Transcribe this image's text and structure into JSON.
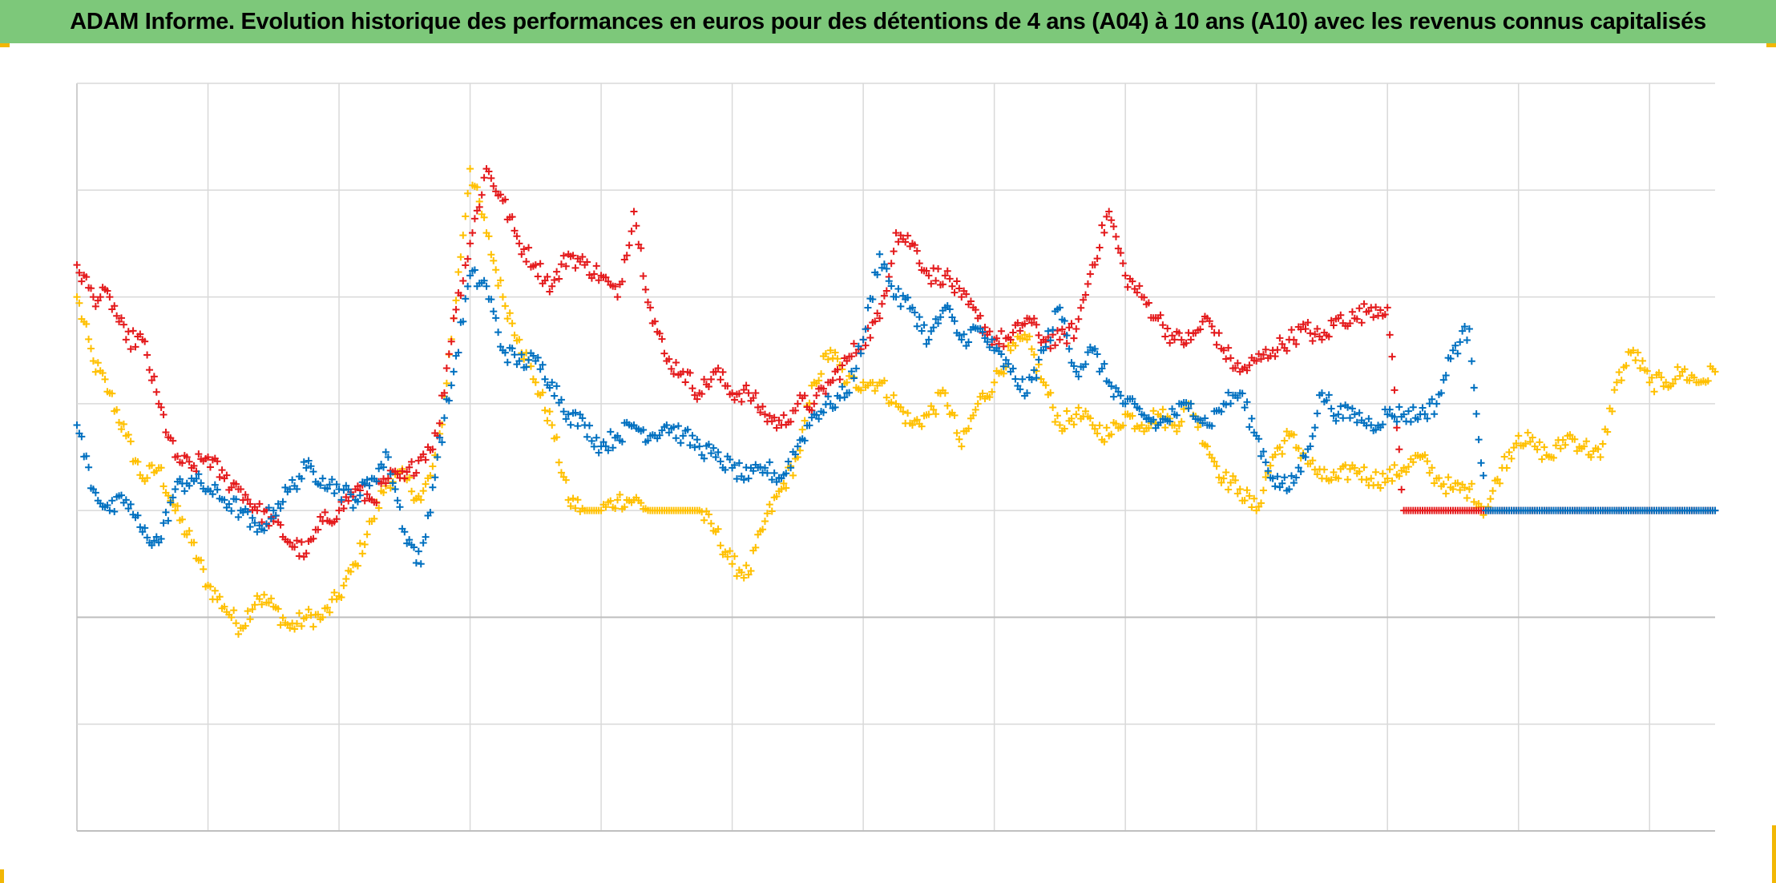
{
  "title": "ADAM Informe. Evolution historique des performances en euros pour des détentions de 4 ans (A04) à 10 ans (A10) avec les revenus connus capitalisés",
  "colors": {
    "header_bg": "#7dc87a",
    "corner_marks": "#f2b705",
    "grid": "#d9d9d9",
    "axis": "#bfbfbf"
  },
  "chart_data": {
    "type": "scatter",
    "marker": "plus",
    "title": "ADAM Informe. Evolution historique des performances en euros pour des détentions de 4 ans (A04) à 10 ans (A10) avec les revenus connus capitalisés",
    "xlabel": "",
    "ylabel": "",
    "xlim": [
      0,
      100
    ],
    "ylim": [
      -2,
      5
    ],
    "grid": true,
    "legend": "none",
    "x_gridlines": [
      0,
      8,
      16,
      24,
      32,
      40,
      48,
      56,
      64,
      72,
      80,
      88,
      96
    ],
    "y_gridlines": [
      -2,
      -1,
      0,
      1,
      2,
      3,
      4,
      5
    ],
    "series": [
      {
        "color": "#e41a1c",
        "x": [
          0,
          1,
          2,
          3,
          4,
          5,
          6,
          7,
          8,
          9,
          10,
          11,
          12,
          13,
          14,
          15,
          16,
          17,
          18,
          19,
          20,
          21,
          22,
          23,
          24,
          25,
          26,
          27,
          28,
          29,
          30,
          31,
          32,
          33,
          34,
          35,
          36,
          37,
          38,
          39,
          40,
          41,
          42,
          43,
          44,
          45,
          46,
          47,
          48,
          49,
          50,
          51,
          52,
          53,
          54,
          55,
          56,
          57,
          58,
          59,
          60,
          61,
          62,
          63,
          64,
          65,
          66,
          67,
          68,
          69,
          70,
          71,
          72,
          73,
          74,
          75,
          76,
          77,
          78,
          79,
          80,
          81,
          82,
          83,
          84,
          85,
          86,
          87,
          88,
          89,
          90,
          91,
          92,
          93,
          94,
          95,
          96,
          97,
          98,
          99,
          100
        ],
        "y": [
          3.3,
          3.0,
          3.0,
          2.6,
          2.6,
          2.0,
          1.5,
          1.4,
          1.5,
          1.3,
          1.2,
          1.0,
          0.9,
          0.7,
          0.6,
          0.9,
          1.0,
          1.2,
          1.1,
          1.3,
          1.3,
          1.5,
          1.7,
          2.8,
          3.5,
          4.2,
          3.9,
          3.5,
          3.3,
          3.1,
          3.4,
          3.3,
          3.2,
          3.0,
          3.8,
          2.9,
          2.4,
          2.3,
          2.1,
          2.3,
          2.1,
          2.1,
          1.9,
          1.8,
          2.0,
          2.0,
          2.2,
          2.4,
          2.6,
          2.8,
          3.6,
          3.5,
          3.2,
          3.2,
          3.0,
          2.8,
          2.6,
          2.6,
          2.8,
          2.6,
          2.6,
          2.7,
          3.3,
          3.8,
          3.2,
          3.0,
          2.8,
          2.6,
          2.6,
          2.8,
          2.5,
          2.3,
          2.4,
          2.5,
          2.6,
          2.7,
          2.6,
          2.8,
          2.8,
          2.9,
          2.9,
          1.0,
          1.0,
          1.0,
          1.0,
          1.0,
          1.0,
          1.0,
          1.0,
          1.0,
          1.0,
          1.0,
          1.0,
          1.0,
          1.0,
          1.0,
          1.0,
          1.0,
          1.0,
          1.0,
          1.0
        ]
      },
      {
        "color": "#0070c0",
        "x": [
          0,
          1,
          2,
          3,
          4,
          5,
          6,
          7,
          8,
          9,
          10,
          11,
          12,
          13,
          14,
          15,
          16,
          17,
          18,
          19,
          20,
          21,
          22,
          23,
          24,
          25,
          26,
          27,
          28,
          29,
          30,
          31,
          32,
          33,
          34,
          35,
          36,
          37,
          38,
          39,
          40,
          41,
          42,
          43,
          44,
          45,
          46,
          47,
          48,
          49,
          50,
          51,
          52,
          53,
          54,
          55,
          56,
          57,
          58,
          59,
          60,
          61,
          62,
          63,
          64,
          65,
          66,
          67,
          68,
          69,
          70,
          71,
          72,
          73,
          74,
          75,
          76,
          77,
          78,
          79,
          80,
          81,
          82,
          83,
          84,
          85,
          86,
          87,
          88,
          89,
          90,
          91,
          92,
          93,
          94,
          95,
          96,
          97,
          98,
          99,
          100
        ],
        "y": [
          1.8,
          1.2,
          1.0,
          1.1,
          0.8,
          0.7,
          1.2,
          1.3,
          1.2,
          1.1,
          1.0,
          0.8,
          1.0,
          1.2,
          1.4,
          1.3,
          1.2,
          1.1,
          1.3,
          1.5,
          0.8,
          0.5,
          1.5,
          2.3,
          3.2,
          3.1,
          2.5,
          2.4,
          2.4,
          2.2,
          1.9,
          1.8,
          1.6,
          1.7,
          1.8,
          1.7,
          1.8,
          1.7,
          1.6,
          1.5,
          1.4,
          1.3,
          1.4,
          1.3,
          1.6,
          1.9,
          2.0,
          2.1,
          2.6,
          3.4,
          3.0,
          2.9,
          2.6,
          2.9,
          2.6,
          2.7,
          2.5,
          2.3,
          2.1,
          2.5,
          2.9,
          2.3,
          2.5,
          2.2,
          2.0,
          1.9,
          1.8,
          1.9,
          2.0,
          1.8,
          2.0,
          2.1,
          1.7,
          1.3,
          1.2,
          1.5,
          2.1,
          1.9,
          1.9,
          1.8,
          1.9,
          1.9,
          1.9,
          2.0,
          2.5,
          2.7,
          1.0,
          1.0,
          1.0,
          1.0,
          1.0,
          1.0,
          1.0,
          1.0,
          1.0,
          1.0,
          1.0,
          1.0,
          1.0,
          1.0,
          1.0
        ]
      },
      {
        "color": "#ffc000",
        "x": [
          0,
          1,
          2,
          3,
          4,
          5,
          6,
          7,
          8,
          9,
          10,
          11,
          12,
          13,
          14,
          15,
          16,
          17,
          18,
          19,
          20,
          21,
          22,
          23,
          24,
          25,
          26,
          27,
          28,
          29,
          30,
          31,
          32,
          33,
          34,
          35,
          36,
          37,
          38,
          39,
          40,
          41,
          42,
          43,
          44,
          45,
          46,
          47,
          48,
          49,
          50,
          51,
          52,
          53,
          54,
          55,
          56,
          57,
          58,
          59,
          60,
          61,
          62,
          63,
          64,
          65,
          66,
          67,
          68,
          69,
          70,
          71,
          72,
          73,
          74,
          75,
          76,
          77,
          78,
          79,
          80,
          81,
          82,
          83,
          84,
          85,
          86,
          87,
          88,
          89,
          90,
          91,
          92,
          93,
          94,
          95,
          96,
          97,
          98,
          99,
          100
        ],
        "y": [
          3.0,
          2.4,
          2.1,
          1.7,
          1.3,
          1.4,
          1.0,
          0.7,
          0.3,
          0.1,
          -0.1,
          0.2,
          0.1,
          -0.1,
          0.0,
          0.0,
          0.2,
          0.5,
          0.9,
          1.3,
          1.3,
          1.1,
          1.5,
          2.8,
          4.2,
          3.6,
          3.0,
          2.6,
          2.2,
          1.8,
          1.1,
          1.0,
          1.0,
          1.1,
          1.1,
          1.0,
          1.0,
          1.0,
          1.0,
          0.8,
          0.5,
          0.4,
          0.9,
          1.2,
          1.5,
          2.2,
          2.5,
          2.2,
          2.2,
          2.2,
          2.0,
          1.8,
          1.9,
          2.1,
          1.6,
          2.0,
          2.2,
          2.5,
          2.6,
          2.2,
          1.8,
          1.9,
          1.8,
          1.7,
          1.9,
          1.8,
          1.9,
          1.8,
          2.0,
          1.6,
          1.3,
          1.2,
          1.0,
          1.5,
          1.7,
          1.5,
          1.3,
          1.3,
          1.4,
          1.3,
          1.3,
          1.4,
          1.5,
          1.3,
          1.2,
          1.2,
          1.0,
          1.4,
          1.7,
          1.6,
          1.5,
          1.7,
          1.6,
          1.5,
          2.2,
          2.5,
          2.2,
          2.2,
          2.3,
          2.2,
          2.3
        ]
      }
    ]
  }
}
